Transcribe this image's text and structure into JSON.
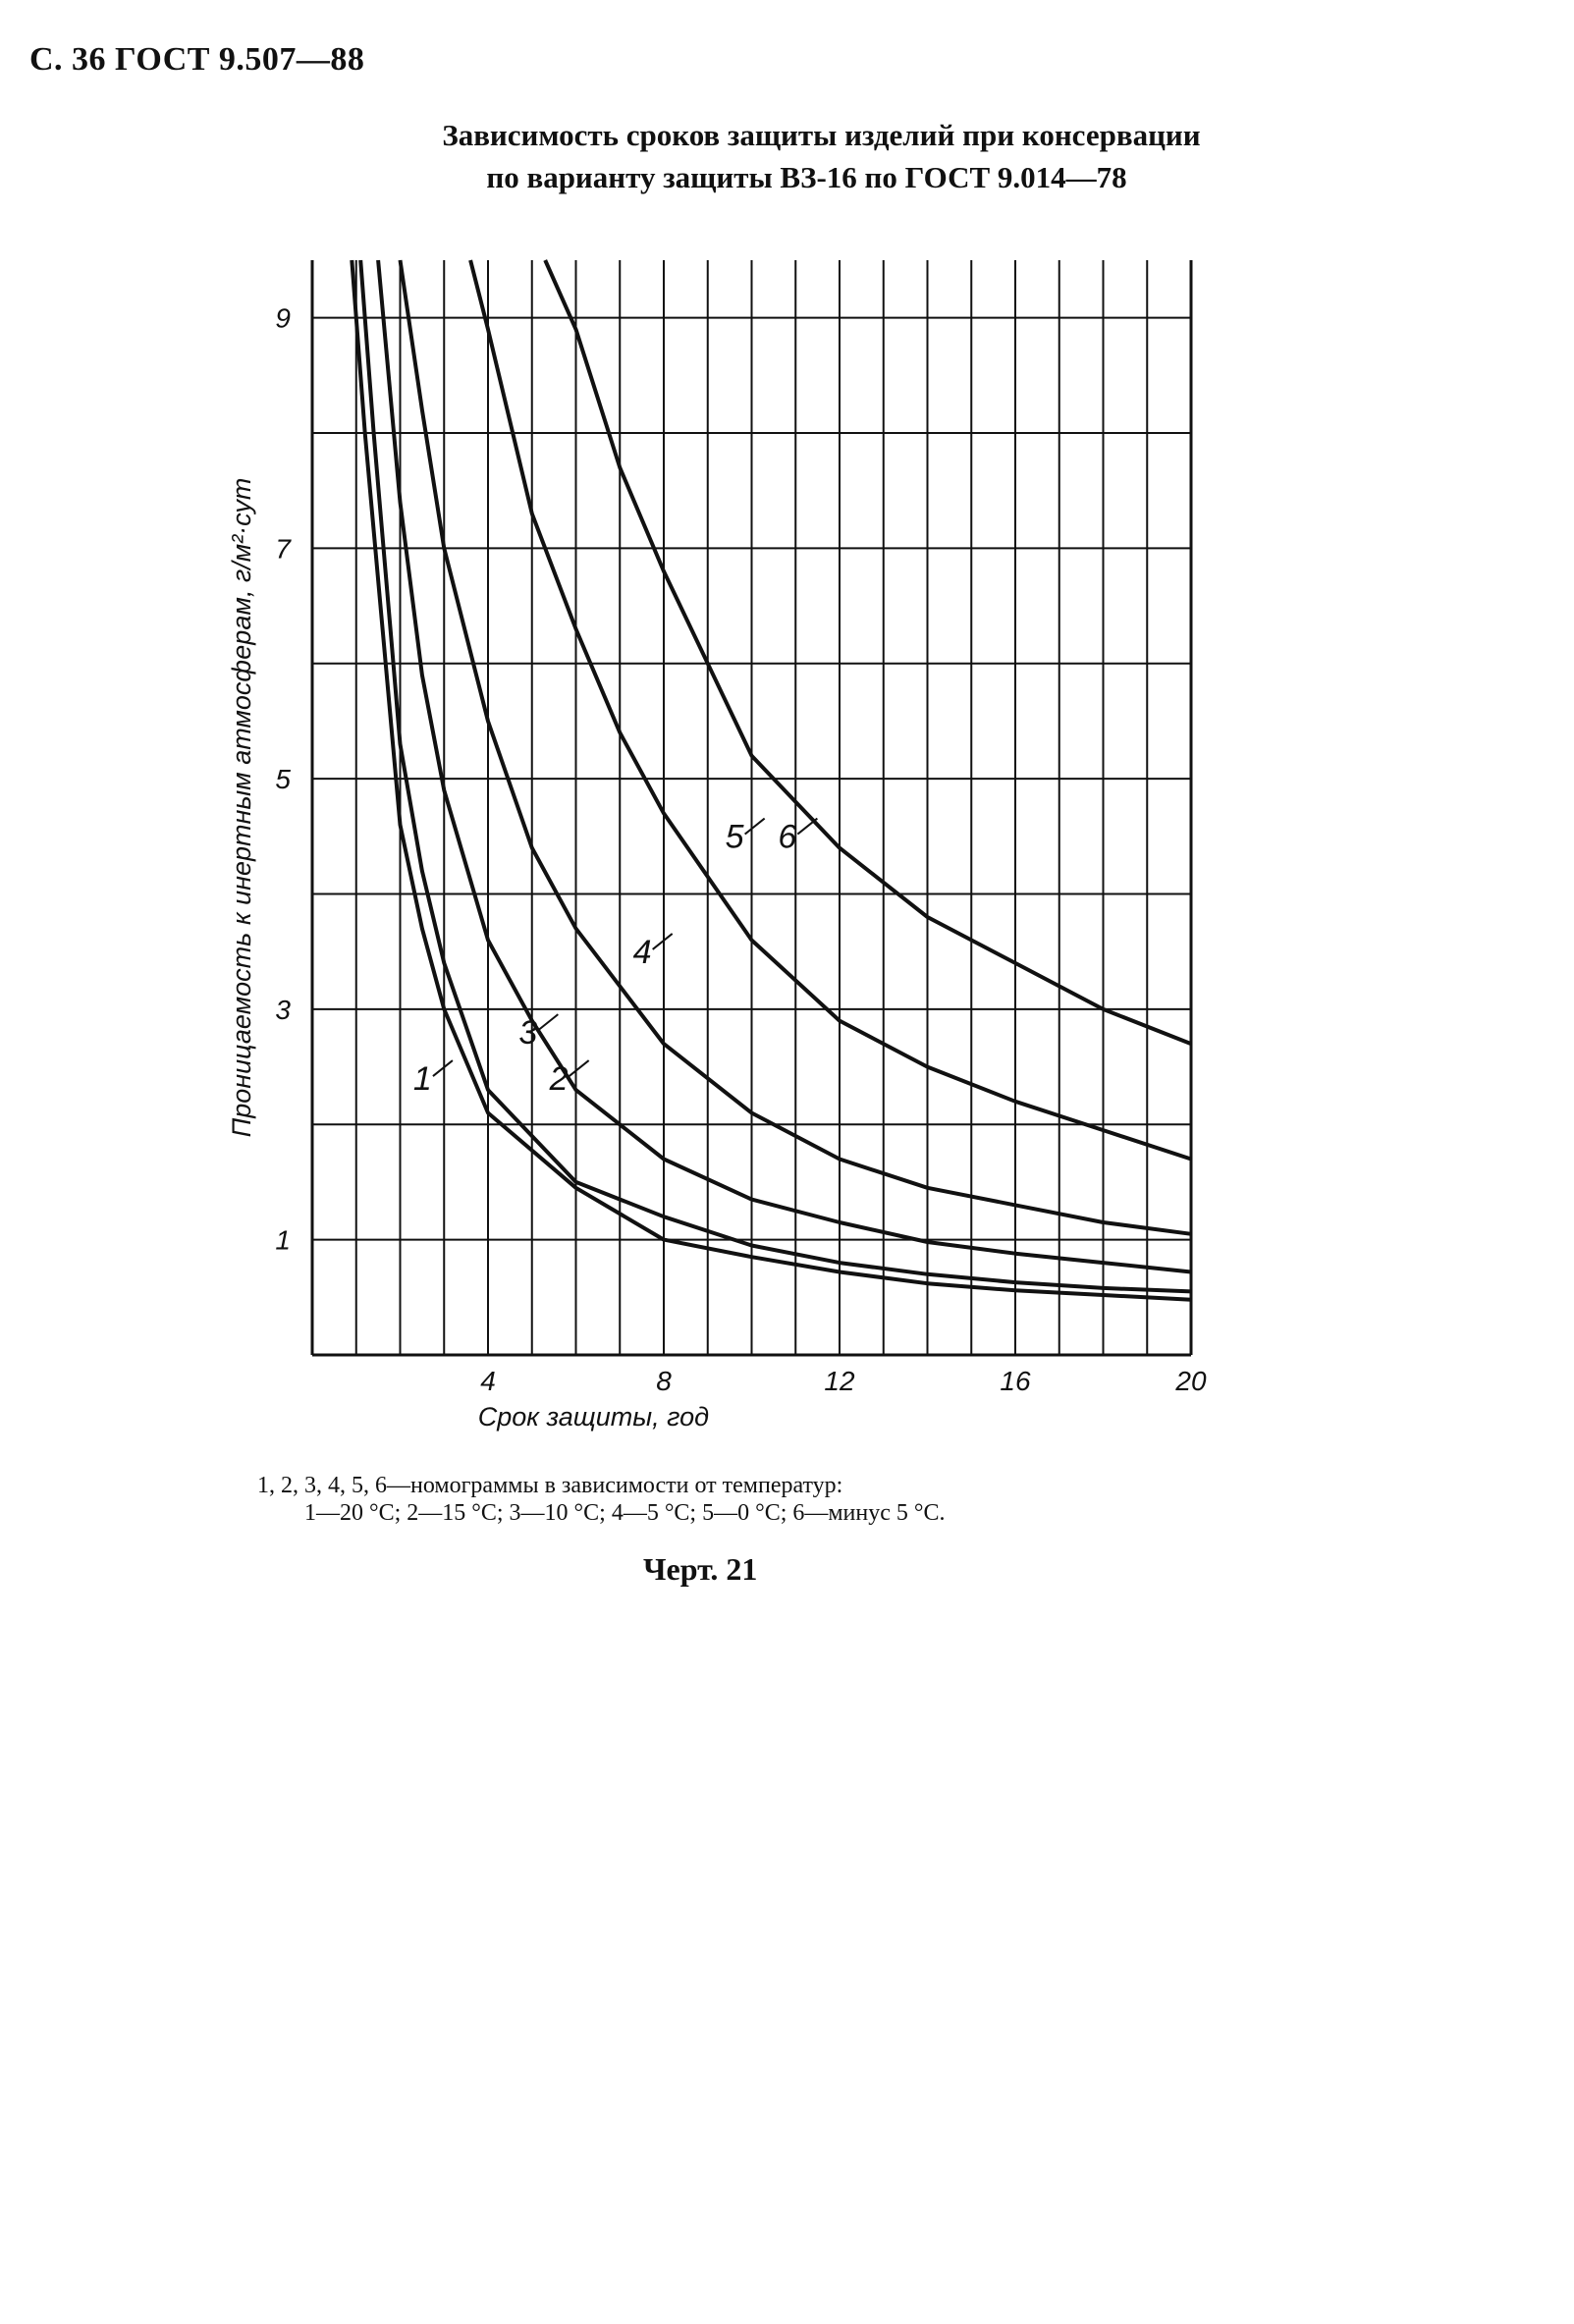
{
  "page": {
    "header": "С. 36 ГОСТ 9.507—88",
    "title_line1": "Зависимость сроков защиты изделий при консервации",
    "title_line2": "по варианту защиты ВЗ-16 по ГОСТ 9.014—78",
    "caption_line1": "1, 2, 3, 4, 5, 6—номограммы в зависимости от температур:",
    "caption_line2": "1—20 °С; 2—15 °С; 3—10 °С; 4—5 °С; 5—0 °С; 6—минус 5 °С.",
    "figure_label": "Черт. 21"
  },
  "chart_data": {
    "type": "line",
    "title": "Зависимость сроков защиты изделий при консервации по варианту защиты ВЗ-16 по ГОСТ 9.014—78",
    "xlabel": "Срок защиты, год",
    "ylabel": "Проницаемость к инертным атмосферам, г/м²·сут",
    "xlim": [
      0,
      20
    ],
    "ylim": [
      0,
      9.5
    ],
    "xticks": [
      4,
      8,
      12,
      16,
      20
    ],
    "yticks": [
      1,
      3,
      5,
      7,
      9
    ],
    "xtick_labels": [
      "4",
      "8",
      "12",
      "16",
      "20"
    ],
    "ytick_labels": [
      "1",
      "3",
      "5",
      "7",
      "9"
    ],
    "grid": true,
    "series": [
      {
        "name": "1",
        "x": [
          0.9,
          1.2,
          1.6,
          2.0,
          2.5,
          3.0,
          4.0,
          6.0,
          8.0,
          10.0,
          12.0,
          14.0,
          16.0,
          18.0,
          20.0
        ],
        "y": [
          9.5,
          8.0,
          6.3,
          4.6,
          3.7,
          3.0,
          2.1,
          1.45,
          1.0,
          0.85,
          0.72,
          0.62,
          0.56,
          0.52,
          0.48
        ]
      },
      {
        "name": "2",
        "x": [
          1.1,
          1.4,
          1.8,
          2.0,
          2.5,
          3.0,
          4.0,
          6.0,
          8.0,
          10.0,
          12.0,
          14.0,
          16.0,
          18.0,
          20.0
        ],
        "y": [
          9.5,
          8.0,
          6.2,
          5.3,
          4.2,
          3.4,
          2.3,
          1.5,
          1.2,
          0.95,
          0.8,
          0.7,
          0.63,
          0.58,
          0.55
        ]
      },
      {
        "name": "3",
        "x": [
          1.5,
          2.0,
          2.5,
          3.0,
          4.0,
          5.0,
          6.0,
          8.0,
          10.0,
          12.0,
          14.0,
          16.0,
          18.0,
          20.0
        ],
        "y": [
          9.5,
          7.4,
          5.9,
          4.9,
          3.6,
          2.9,
          2.3,
          1.7,
          1.35,
          1.15,
          0.98,
          0.88,
          0.8,
          0.72
        ]
      },
      {
        "name": "4",
        "x": [
          2.0,
          2.5,
          3.0,
          4.0,
          5.0,
          6.0,
          8.0,
          10.0,
          12.0,
          14.0,
          16.0,
          18.0,
          20.0
        ],
        "y": [
          9.5,
          8.2,
          7.0,
          5.5,
          4.4,
          3.7,
          2.7,
          2.1,
          1.7,
          1.45,
          1.3,
          1.15,
          1.05
        ]
      },
      {
        "name": "5",
        "x": [
          3.6,
          4.0,
          5.0,
          6.0,
          7.0,
          8.0,
          10.0,
          12.0,
          14.0,
          16.0,
          18.0,
          20.0
        ],
        "y": [
          9.5,
          8.9,
          7.3,
          6.3,
          5.4,
          4.7,
          3.6,
          2.9,
          2.5,
          2.2,
          1.95,
          1.7
        ]
      },
      {
        "name": "6",
        "x": [
          5.3,
          6.0,
          7.0,
          8.0,
          9.0,
          10.0,
          12.0,
          14.0,
          16.0,
          18.0,
          20.0
        ],
        "y": [
          9.5,
          8.9,
          7.7,
          6.8,
          6.0,
          5.2,
          4.4,
          3.8,
          3.4,
          3.0,
          2.7
        ]
      }
    ],
    "curve_labels": [
      {
        "text": "1",
        "x": 2.3,
        "y": 2.3
      },
      {
        "text": "2",
        "x": 5.4,
        "y": 2.3
      },
      {
        "text": "3",
        "x": 4.7,
        "y": 2.7
      },
      {
        "text": "4",
        "x": 7.3,
        "y": 3.4
      },
      {
        "text": "5",
        "x": 9.4,
        "y": 4.4
      },
      {
        "text": "6",
        "x": 10.6,
        "y": 4.4
      }
    ]
  }
}
